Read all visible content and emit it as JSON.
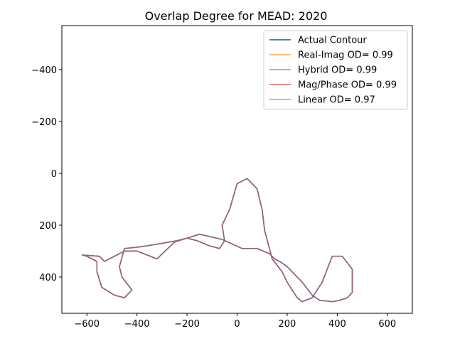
{
  "chart_data": {
    "type": "line",
    "title": "Overlap Degree for MEAD: 2020",
    "xlabel": "",
    "ylabel": "",
    "xlim": [
      -700,
      700
    ],
    "ylim": [
      540,
      -570
    ],
    "y_inverted": true,
    "grid": false,
    "legend_placement": "top-right",
    "xticks": [
      -600,
      -400,
      -200,
      0,
      200,
      400,
      600
    ],
    "yticks": [
      -400,
      -200,
      0,
      200,
      400
    ],
    "xtick_labels": [
      "−600",
      "−400",
      "−200",
      "0",
      "200",
      "400",
      "600"
    ],
    "ytick_labels": [
      "−400",
      "−200",
      "0",
      "200",
      "400"
    ],
    "series": [
      {
        "name": "Actual Contour",
        "color": "#1f77b4",
        "x": [
          -620,
          -550,
          -530,
          -450,
          -400,
          -320,
          -250,
          -150,
          -60,
          20,
          80,
          130,
          150,
          170,
          200,
          230,
          260,
          300,
          330,
          380,
          410,
          440,
          460,
          460,
          420,
          380,
          340,
          300,
          260,
          240,
          200,
          180,
          140,
          110,
          100,
          80,
          40,
          0,
          -30,
          -60,
          -50,
          -70,
          -110,
          -160,
          -200,
          -240,
          -300,
          -360,
          -400,
          -450,
          -470,
          -460,
          -420,
          -450,
          -490,
          -540,
          -560,
          -560,
          -600,
          -620
        ],
        "y": [
          315,
          320,
          340,
          300,
          300,
          330,
          265,
          235,
          255,
          290,
          290,
          310,
          330,
          340,
          360,
          390,
          420,
          470,
          490,
          495,
          490,
          480,
          460,
          370,
          320,
          320,
          420,
          480,
          495,
          480,
          420,
          380,
          330,
          220,
          140,
          60,
          20,
          40,
          140,
          200,
          260,
          290,
          280,
          260,
          250,
          260,
          270,
          280,
          285,
          290,
          360,
          400,
          450,
          480,
          470,
          440,
          380,
          340,
          320,
          315
        ]
      },
      {
        "name": "Real-Imag OD= 0.99",
        "color": "#ff7f0e",
        "x": [
          -620,
          -550,
          -530,
          -450,
          -400,
          -320,
          -250,
          -150,
          -60,
          20,
          80,
          130,
          150,
          170,
          200,
          230,
          260,
          300,
          330,
          380,
          410,
          440,
          460,
          460,
          420,
          380,
          340,
          300,
          260,
          240,
          200,
          180,
          140,
          110,
          100,
          80,
          40,
          0,
          -30,
          -60,
          -50,
          -70,
          -110,
          -160,
          -200,
          -240,
          -300,
          -360,
          -400,
          -450,
          -470,
          -460,
          -420,
          -450,
          -490,
          -540,
          -560,
          -560,
          -600,
          -620
        ],
        "y": [
          315,
          320,
          340,
          300,
          300,
          330,
          265,
          235,
          255,
          290,
          290,
          310,
          330,
          340,
          360,
          390,
          420,
          470,
          490,
          495,
          490,
          480,
          460,
          370,
          320,
          320,
          420,
          480,
          495,
          480,
          420,
          380,
          330,
          220,
          140,
          60,
          20,
          40,
          140,
          200,
          260,
          290,
          280,
          260,
          250,
          260,
          270,
          280,
          285,
          290,
          360,
          400,
          450,
          480,
          470,
          440,
          380,
          340,
          320,
          315
        ]
      },
      {
        "name": "Hybrid OD= 0.99",
        "color": "#2ca02c",
        "x": [
          -620,
          -550,
          -530,
          -450,
          -400,
          -320,
          -250,
          -150,
          -60,
          20,
          80,
          130,
          150,
          170,
          200,
          230,
          260,
          300,
          330,
          380,
          410,
          440,
          460,
          460,
          420,
          380,
          340,
          300,
          260,
          240,
          200,
          180,
          140,
          110,
          100,
          80,
          40,
          0,
          -30,
          -60,
          -50,
          -70,
          -110,
          -160,
          -200,
          -240,
          -300,
          -360,
          -400,
          -450,
          -470,
          -460,
          -420,
          -450,
          -490,
          -540,
          -560,
          -560,
          -600,
          -620
        ],
        "y": [
          315,
          320,
          340,
          300,
          300,
          330,
          265,
          235,
          255,
          290,
          290,
          310,
          330,
          340,
          360,
          390,
          420,
          470,
          490,
          495,
          490,
          480,
          460,
          370,
          320,
          320,
          420,
          480,
          495,
          480,
          420,
          380,
          330,
          220,
          140,
          60,
          20,
          40,
          140,
          200,
          260,
          290,
          280,
          260,
          250,
          260,
          270,
          280,
          285,
          290,
          360,
          400,
          450,
          480,
          470,
          440,
          380,
          340,
          320,
          315
        ]
      },
      {
        "name": "Mag/Phase OD= 0.99",
        "color": "#d62728",
        "x": [
          -620,
          -550,
          -530,
          -450,
          -400,
          -320,
          -250,
          -150,
          -60,
          20,
          80,
          130,
          150,
          170,
          200,
          230,
          260,
          300,
          330,
          380,
          410,
          440,
          460,
          460,
          420,
          380,
          340,
          300,
          260,
          240,
          200,
          180,
          140,
          110,
          100,
          80,
          40,
          0,
          -30,
          -60,
          -50,
          -70,
          -110,
          -160,
          -200,
          -240,
          -300,
          -360,
          -400,
          -450,
          -470,
          -460,
          -420,
          -450,
          -490,
          -540,
          -560,
          -560,
          -600,
          -620
        ],
        "y": [
          315,
          320,
          340,
          300,
          300,
          330,
          265,
          235,
          255,
          290,
          290,
          310,
          330,
          340,
          360,
          390,
          420,
          470,
          490,
          495,
          490,
          480,
          460,
          370,
          320,
          320,
          420,
          480,
          495,
          480,
          420,
          380,
          330,
          220,
          140,
          60,
          20,
          40,
          140,
          200,
          260,
          290,
          280,
          260,
          250,
          260,
          270,
          280,
          285,
          290,
          360,
          400,
          450,
          480,
          470,
          440,
          380,
          340,
          320,
          315
        ]
      },
      {
        "name": "Linear OD= 0.97",
        "color": "#9467bd",
        "x": [
          -620,
          -550,
          -530,
          -450,
          -400,
          -320,
          -250,
          -150,
          -60,
          20,
          80,
          130,
          150,
          170,
          200,
          230,
          260,
          300,
          330,
          380,
          410,
          440,
          460,
          460,
          420,
          380,
          340,
          300,
          260,
          240,
          200,
          180,
          140,
          110,
          100,
          80,
          40,
          0,
          -30,
          -60,
          -50,
          -70,
          -110,
          -160,
          -200,
          -240,
          -300,
          -360,
          -400,
          -450,
          -470,
          -460,
          -420,
          -450,
          -490,
          -540,
          -560,
          -560,
          -600,
          -620
        ],
        "y": [
          315,
          320,
          340,
          300,
          300,
          330,
          265,
          235,
          255,
          290,
          290,
          310,
          330,
          340,
          360,
          390,
          420,
          470,
          490,
          495,
          490,
          480,
          460,
          370,
          320,
          320,
          420,
          480,
          495,
          480,
          420,
          380,
          330,
          220,
          140,
          60,
          20,
          40,
          140,
          200,
          260,
          290,
          280,
          260,
          250,
          260,
          270,
          280,
          285,
          290,
          360,
          400,
          450,
          480,
          470,
          440,
          380,
          340,
          320,
          315
        ]
      }
    ]
  }
}
